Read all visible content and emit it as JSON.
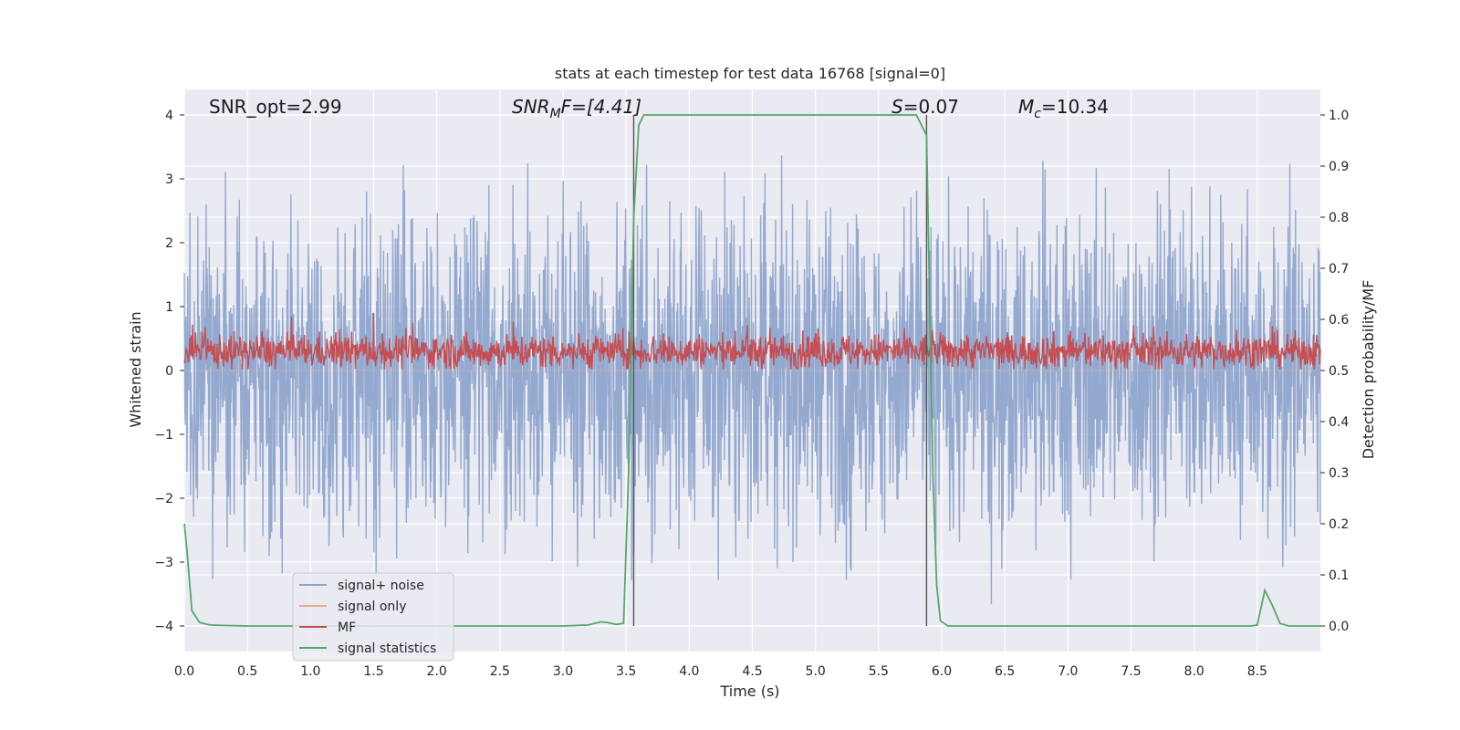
{
  "chart_data": {
    "type": "line",
    "title": "stats at each timestep for test data 16768 [signal=0]",
    "xlabel": "Time (s)",
    "ylabel_left": "Whitened strain",
    "ylabel_right": "Detection probability/MF",
    "xlim": [
      0.0,
      9.0
    ],
    "ylim_left": [
      -4.4,
      4.4
    ],
    "ylim_right": [
      -0.05,
      1.05
    ],
    "xticks": [
      "0.0",
      "0.5",
      "1.0",
      "1.5",
      "2.0",
      "2.5",
      "3.0",
      "3.5",
      "4.0",
      "4.5",
      "5.0",
      "5.5",
      "6.0",
      "6.5",
      "7.0",
      "7.5",
      "8.0",
      "8.5"
    ],
    "yticks_left": [
      "4",
      "3",
      "2",
      "1",
      "0",
      "−1",
      "−2",
      "−3",
      "−4"
    ],
    "yticks_right": [
      "1.0",
      "0.9",
      "0.8",
      "0.7",
      "0.6",
      "0.5",
      "0.4",
      "0.3",
      "0.2",
      "0.1",
      "0.0"
    ],
    "grid": true,
    "annotations": {
      "snr_opt": "SNR_opt=2.99",
      "snr_mf_main": "SNR",
      "snr_mf_sub": "M",
      "snr_mf_rest": "F=[4.41]",
      "s_main": "S",
      "s_rest": "=0.07",
      "mc_main": "M",
      "mc_sub": "c",
      "mc_rest": "=10.34"
    },
    "vertical_markers": [
      3.56,
      5.88
    ],
    "series": [
      {
        "name": "signal+ noise",
        "color": "#8fa5cc",
        "kind": "noise",
        "typical_amplitude": 1.6,
        "peak_amplitude": 3.3
      },
      {
        "name": "signal only",
        "color": "#e8a990",
        "kind": "flat",
        "value": 0
      },
      {
        "name": "MF",
        "color": "#c44e52",
        "kind": "mf",
        "center": 0.3,
        "spread": 0.3
      },
      {
        "name": "signal statistics",
        "color": "#55a868",
        "kind": "probability",
        "x": [
          0.0,
          0.02,
          0.06,
          0.12,
          0.2,
          0.3,
          0.5,
          1.0,
          1.5,
          2.0,
          2.5,
          3.0,
          3.2,
          3.3,
          3.35,
          3.42,
          3.48,
          3.52,
          3.56,
          3.6,
          3.64,
          3.7,
          4.0,
          5.0,
          5.5,
          5.8,
          5.88,
          5.93,
          5.96,
          5.99,
          6.05,
          6.2,
          7.0,
          8.0,
          8.45,
          8.5,
          8.56,
          8.62,
          8.68,
          8.75,
          9.0
        ],
        "y": [
          0.2,
          0.15,
          0.03,
          0.007,
          0.002,
          0.001,
          0.0,
          0.0,
          0.0,
          0.0,
          0.0,
          0.0,
          0.002,
          0.008,
          0.007,
          0.003,
          0.005,
          0.3,
          0.8,
          0.98,
          1.0,
          1.0,
          1.0,
          1.0,
          1.0,
          1.0,
          0.96,
          0.3,
          0.08,
          0.01,
          0.0,
          0.0,
          0.0,
          0.0,
          0.0,
          0.002,
          0.07,
          0.04,
          0.005,
          0.0,
          0.0
        ]
      }
    ],
    "legend_position": "lower-left"
  }
}
